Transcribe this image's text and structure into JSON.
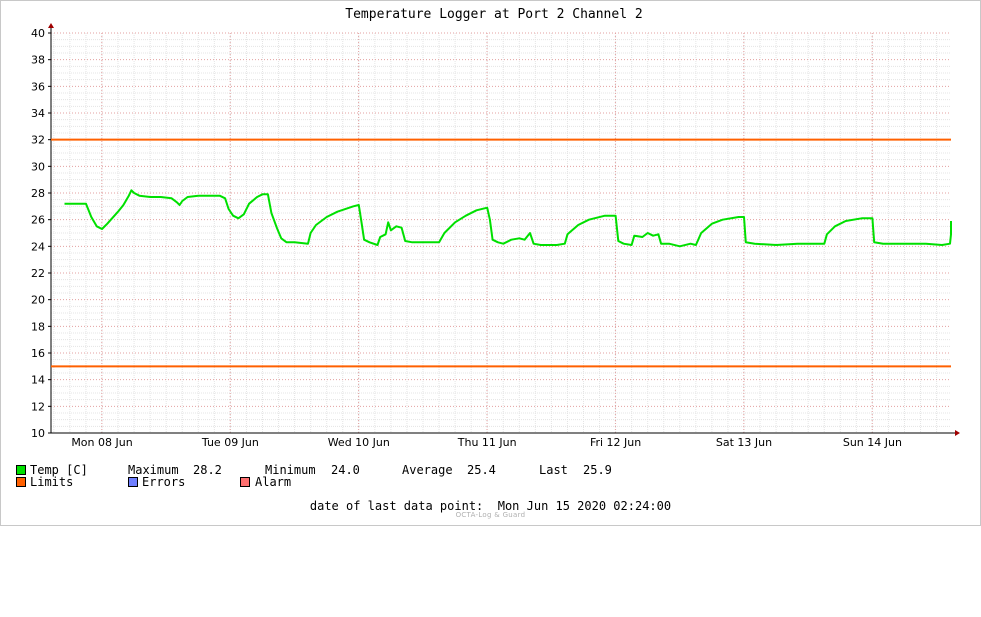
{
  "chart_data": {
    "type": "line",
    "title": "Temperature Logger at Port 2 Channel 2",
    "ylim": [
      10,
      40
    ],
    "yticks": [
      10,
      12,
      14,
      16,
      18,
      20,
      22,
      24,
      26,
      28,
      30,
      32,
      34,
      36,
      38,
      40
    ],
    "x_range_days": [
      "Mon 08 Jun 2020 00:00",
      "Mon 15 Jun 2020 02:24"
    ],
    "x_tick_labels": [
      "Mon 08 Jun",
      "Tue 09 Jun",
      "Wed 10 Jun",
      "Thu 11 Jun",
      "Fri 12 Jun",
      "Sat 13 Jun",
      "Sun 14 Jun"
    ],
    "grid": true,
    "limits": {
      "upper": 32,
      "lower": 15
    },
    "series": [
      {
        "name": "Temp [C]",
        "color": "#00e000",
        "points": [
          [
            "2020-06-07 17:00",
            27.2
          ],
          [
            "2020-06-07 21:00",
            27.2
          ],
          [
            "2020-06-07 22:00",
            26.2
          ],
          [
            "2020-06-07 23:00",
            25.5
          ],
          [
            "2020-06-08 00:00",
            25.3
          ],
          [
            "2020-06-08 01:00",
            25.7
          ],
          [
            "2020-06-08 03:00",
            26.6
          ],
          [
            "2020-06-08 04:00",
            27.1
          ],
          [
            "2020-06-08 05:00",
            27.8
          ],
          [
            "2020-06-08 05:30",
            28.2
          ],
          [
            "2020-06-08 06:00",
            28.0
          ],
          [
            "2020-06-08 07:00",
            27.8
          ],
          [
            "2020-06-08 09:00",
            27.7
          ],
          [
            "2020-06-08 11:00",
            27.7
          ],
          [
            "2020-06-08 13:00",
            27.6
          ],
          [
            "2020-06-08 14:00",
            27.3
          ],
          [
            "2020-06-08 14:30",
            27.1
          ],
          [
            "2020-06-08 15:00",
            27.4
          ],
          [
            "2020-06-08 16:00",
            27.7
          ],
          [
            "2020-06-08 18:00",
            27.8
          ],
          [
            "2020-06-08 20:00",
            27.8
          ],
          [
            "2020-06-08 22:00",
            27.8
          ],
          [
            "2020-06-08 23:00",
            27.6
          ],
          [
            "2020-06-08 23:40",
            26.8
          ],
          [
            "2020-06-09 00:30",
            26.3
          ],
          [
            "2020-06-09 01:30",
            26.1
          ],
          [
            "2020-06-09 02:30",
            26.4
          ],
          [
            "2020-06-09 03:30",
            27.2
          ],
          [
            "2020-06-09 05:00",
            27.7
          ],
          [
            "2020-06-09 06:00",
            27.9
          ],
          [
            "2020-06-09 07:00",
            27.9
          ],
          [
            "2020-06-09 07:40",
            26.5
          ],
          [
            "2020-06-09 08:40",
            25.4
          ],
          [
            "2020-06-09 09:30",
            24.6
          ],
          [
            "2020-06-09 10:30",
            24.3
          ],
          [
            "2020-06-09 12:00",
            24.3
          ],
          [
            "2020-06-09 14:30",
            24.2
          ],
          [
            "2020-06-09 15:00",
            25.0
          ],
          [
            "2020-06-09 16:00",
            25.6
          ],
          [
            "2020-06-09 18:00",
            26.2
          ],
          [
            "2020-06-09 20:00",
            26.6
          ],
          [
            "2020-06-09 23:00",
            27.0
          ],
          [
            "2020-06-10 00:00",
            27.1
          ],
          [
            "2020-06-10 00:30",
            25.8
          ],
          [
            "2020-06-10 01:00",
            24.5
          ],
          [
            "2020-06-10 02:00",
            24.3
          ],
          [
            "2020-06-10 03:30",
            24.1
          ],
          [
            "2020-06-10 04:00",
            24.7
          ],
          [
            "2020-06-10 05:00",
            24.9
          ],
          [
            "2020-06-10 05:30",
            25.8
          ],
          [
            "2020-06-10 06:00",
            25.2
          ],
          [
            "2020-06-10 07:00",
            25.5
          ],
          [
            "2020-06-10 08:00",
            25.4
          ],
          [
            "2020-06-10 08:40",
            24.4
          ],
          [
            "2020-06-10 10:00",
            24.3
          ],
          [
            "2020-06-10 13:00",
            24.3
          ],
          [
            "2020-06-10 15:00",
            24.3
          ],
          [
            "2020-06-10 16:00",
            25.0
          ],
          [
            "2020-06-10 18:00",
            25.8
          ],
          [
            "2020-06-10 20:00",
            26.3
          ],
          [
            "2020-06-10 22:00",
            26.7
          ],
          [
            "2020-06-11 00:00",
            26.9
          ],
          [
            "2020-06-11 00:30",
            26.0
          ],
          [
            "2020-06-11 01:00",
            24.5
          ],
          [
            "2020-06-11 02:00",
            24.3
          ],
          [
            "2020-06-11 03:00",
            24.2
          ],
          [
            "2020-06-11 04:30",
            24.5
          ],
          [
            "2020-06-11 06:00",
            24.6
          ],
          [
            "2020-06-11 07:00",
            24.5
          ],
          [
            "2020-06-11 08:00",
            25.0
          ],
          [
            "2020-06-11 08:40",
            24.2
          ],
          [
            "2020-06-11 10:00",
            24.1
          ],
          [
            "2020-06-11 13:00",
            24.1
          ],
          [
            "2020-06-11 14:30",
            24.2
          ],
          [
            "2020-06-11 15:00",
            24.9
          ],
          [
            "2020-06-11 17:00",
            25.6
          ],
          [
            "2020-06-11 19:00",
            26.0
          ],
          [
            "2020-06-11 22:00",
            26.3
          ],
          [
            "2020-06-12 00:00",
            26.3
          ],
          [
            "2020-06-12 00:30",
            24.4
          ],
          [
            "2020-06-12 01:30",
            24.2
          ],
          [
            "2020-06-12 03:00",
            24.1
          ],
          [
            "2020-06-12 03:30",
            24.8
          ],
          [
            "2020-06-12 05:00",
            24.7
          ],
          [
            "2020-06-12 06:00",
            25.0
          ],
          [
            "2020-06-12 07:00",
            24.8
          ],
          [
            "2020-06-12 08:00",
            24.9
          ],
          [
            "2020-06-12 08:30",
            24.2
          ],
          [
            "2020-06-12 10:00",
            24.2
          ],
          [
            "2020-06-12 12:00",
            24.0
          ],
          [
            "2020-06-12 14:00",
            24.2
          ],
          [
            "2020-06-12 15:00",
            24.1
          ],
          [
            "2020-06-12 16:00",
            25.0
          ],
          [
            "2020-06-12 18:00",
            25.7
          ],
          [
            "2020-06-12 20:00",
            26.0
          ],
          [
            "2020-06-12 23:00",
            26.2
          ],
          [
            "2020-06-13 00:00",
            26.2
          ],
          [
            "2020-06-13 00:20",
            24.3
          ],
          [
            "2020-06-13 02:00",
            24.2
          ],
          [
            "2020-06-13 06:00",
            24.1
          ],
          [
            "2020-06-13 10:00",
            24.2
          ],
          [
            "2020-06-13 13:00",
            24.2
          ],
          [
            "2020-06-13 15:00",
            24.2
          ],
          [
            "2020-06-13 15:30",
            24.9
          ],
          [
            "2020-06-13 17:00",
            25.5
          ],
          [
            "2020-06-13 19:00",
            25.9
          ],
          [
            "2020-06-13 22:00",
            26.1
          ],
          [
            "2020-06-14 00:00",
            26.1
          ],
          [
            "2020-06-14 00:20",
            24.3
          ],
          [
            "2020-06-14 02:00",
            24.2
          ],
          [
            "2020-06-14 06:00",
            24.2
          ],
          [
            "2020-06-14 10:00",
            24.2
          ],
          [
            "2020-06-14 13:00",
            24.1
          ],
          [
            "2020-06-14 14:30",
            24.2
          ],
          [
            "2020-06-14 15:00",
            24.9
          ],
          [
            "2020-06-14 17:00",
            25.4
          ],
          [
            "2020-06-14 19:00",
            25.8
          ],
          [
            "2020-06-14 21:00",
            25.9
          ]
        ]
      }
    ],
    "colors": {
      "limits": "#ff6000",
      "errors": "#6f7fff",
      "alarm": "#ff7070",
      "grid_major": "#e3a0a0",
      "grid_minor": "#e6e6e6"
    }
  },
  "legend": {
    "temp_label": "Temp [C]",
    "max_label": "Maximum",
    "max_value": "28.2",
    "min_label": "Minimum",
    "min_value": "24.0",
    "avg_label": "Average",
    "avg_value": "25.4",
    "last_label": "Last",
    "last_value": "25.9",
    "limits_label": "Limits",
    "errors_label": "Errors",
    "alarm_label": "Alarm"
  },
  "footer": {
    "date_text": "date of last data point:  Mon Jun 15 2020 02:24:00",
    "brand_text": "OCTA-Log & Guard"
  }
}
